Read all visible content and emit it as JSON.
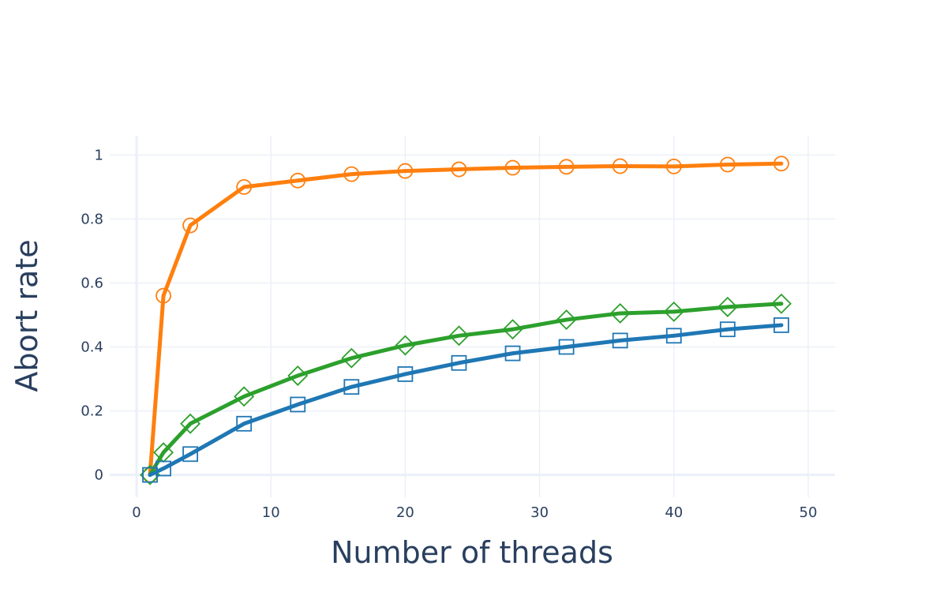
{
  "chart_data": {
    "type": "line",
    "xlabel": "Number of threads",
    "ylabel": "Abort rate",
    "xlim": [
      -2,
      52
    ],
    "ylim": [
      -0.07,
      1.06
    ],
    "xticks": [
      0,
      10,
      20,
      30,
      40,
      50
    ],
    "xtick_labels": [
      "0",
      "10",
      "20",
      "30",
      "40",
      "50"
    ],
    "yticks": [
      0,
      0.2,
      0.4,
      0.6,
      0.8,
      1
    ],
    "ytick_labels": [
      "0",
      "0.2",
      "0.4",
      "0.6",
      "0.8",
      "1"
    ],
    "grid": true,
    "legend": "none",
    "series": [
      {
        "color": "#ff7f0e",
        "marker": "circle",
        "x": [
          1,
          2,
          4,
          8,
          12,
          16,
          20,
          24,
          28,
          32,
          36,
          40,
          44,
          48
        ],
        "y": [
          0.0,
          0.56,
          0.78,
          0.9,
          0.92,
          0.94,
          0.95,
          0.955,
          0.96,
          0.963,
          0.965,
          0.964,
          0.97,
          0.973
        ]
      },
      {
        "color": "#2ca02c",
        "marker": "diamond",
        "x": [
          1,
          2,
          4,
          8,
          12,
          16,
          20,
          24,
          28,
          32,
          36,
          40,
          44,
          48
        ],
        "y": [
          0.0,
          0.07,
          0.16,
          0.245,
          0.31,
          0.365,
          0.405,
          0.435,
          0.455,
          0.485,
          0.505,
          0.51,
          0.525,
          0.535
        ]
      },
      {
        "color": "#1f77b4",
        "marker": "square",
        "x": [
          1,
          2,
          4,
          8,
          12,
          16,
          20,
          24,
          28,
          32,
          36,
          40,
          44,
          48
        ],
        "y": [
          0.0,
          0.02,
          0.065,
          0.16,
          0.22,
          0.275,
          0.315,
          0.35,
          0.38,
          0.4,
          0.42,
          0.435,
          0.455,
          0.468
        ]
      }
    ]
  }
}
